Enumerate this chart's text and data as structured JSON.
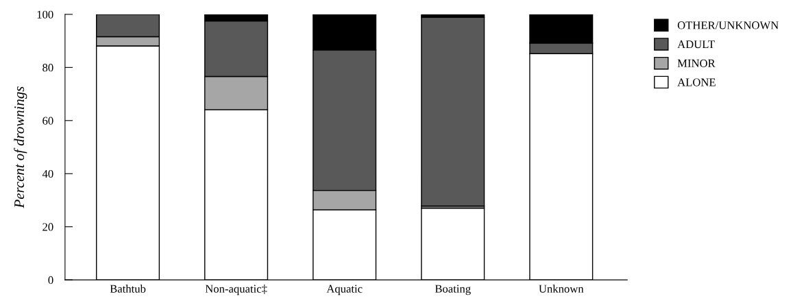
{
  "chart_data": {
    "type": "bar",
    "ylabel": "Percent of drownings",
    "categories": [
      "Bathtub",
      "Non-aquatic‡",
      "Aquatic",
      "Boating",
      "Unknown"
    ],
    "stacked": true,
    "series": [
      {
        "name": "ALONE",
        "color": "#ffffff",
        "values": [
          88.1,
          64.1,
          26.4,
          27.0,
          85.2
        ]
      },
      {
        "name": "MINOR",
        "color": "#a6a6a6",
        "values": [
          3.5,
          12.5,
          7.3,
          0.8,
          0
        ]
      },
      {
        "name": "ADULT",
        "color": "#595959",
        "values": [
          8.4,
          20.9,
          52.9,
          71.1,
          4.0
        ]
      },
      {
        "name": "OTHER/UNKNOWN",
        "color": "#000000",
        "values": [
          0,
          2.5,
          13.4,
          1.1,
          10.8
        ]
      }
    ],
    "ylim": [
      0,
      100
    ],
    "yticks": [
      0,
      20,
      40,
      60,
      80,
      100
    ],
    "grid": false,
    "legend": "top right"
  }
}
